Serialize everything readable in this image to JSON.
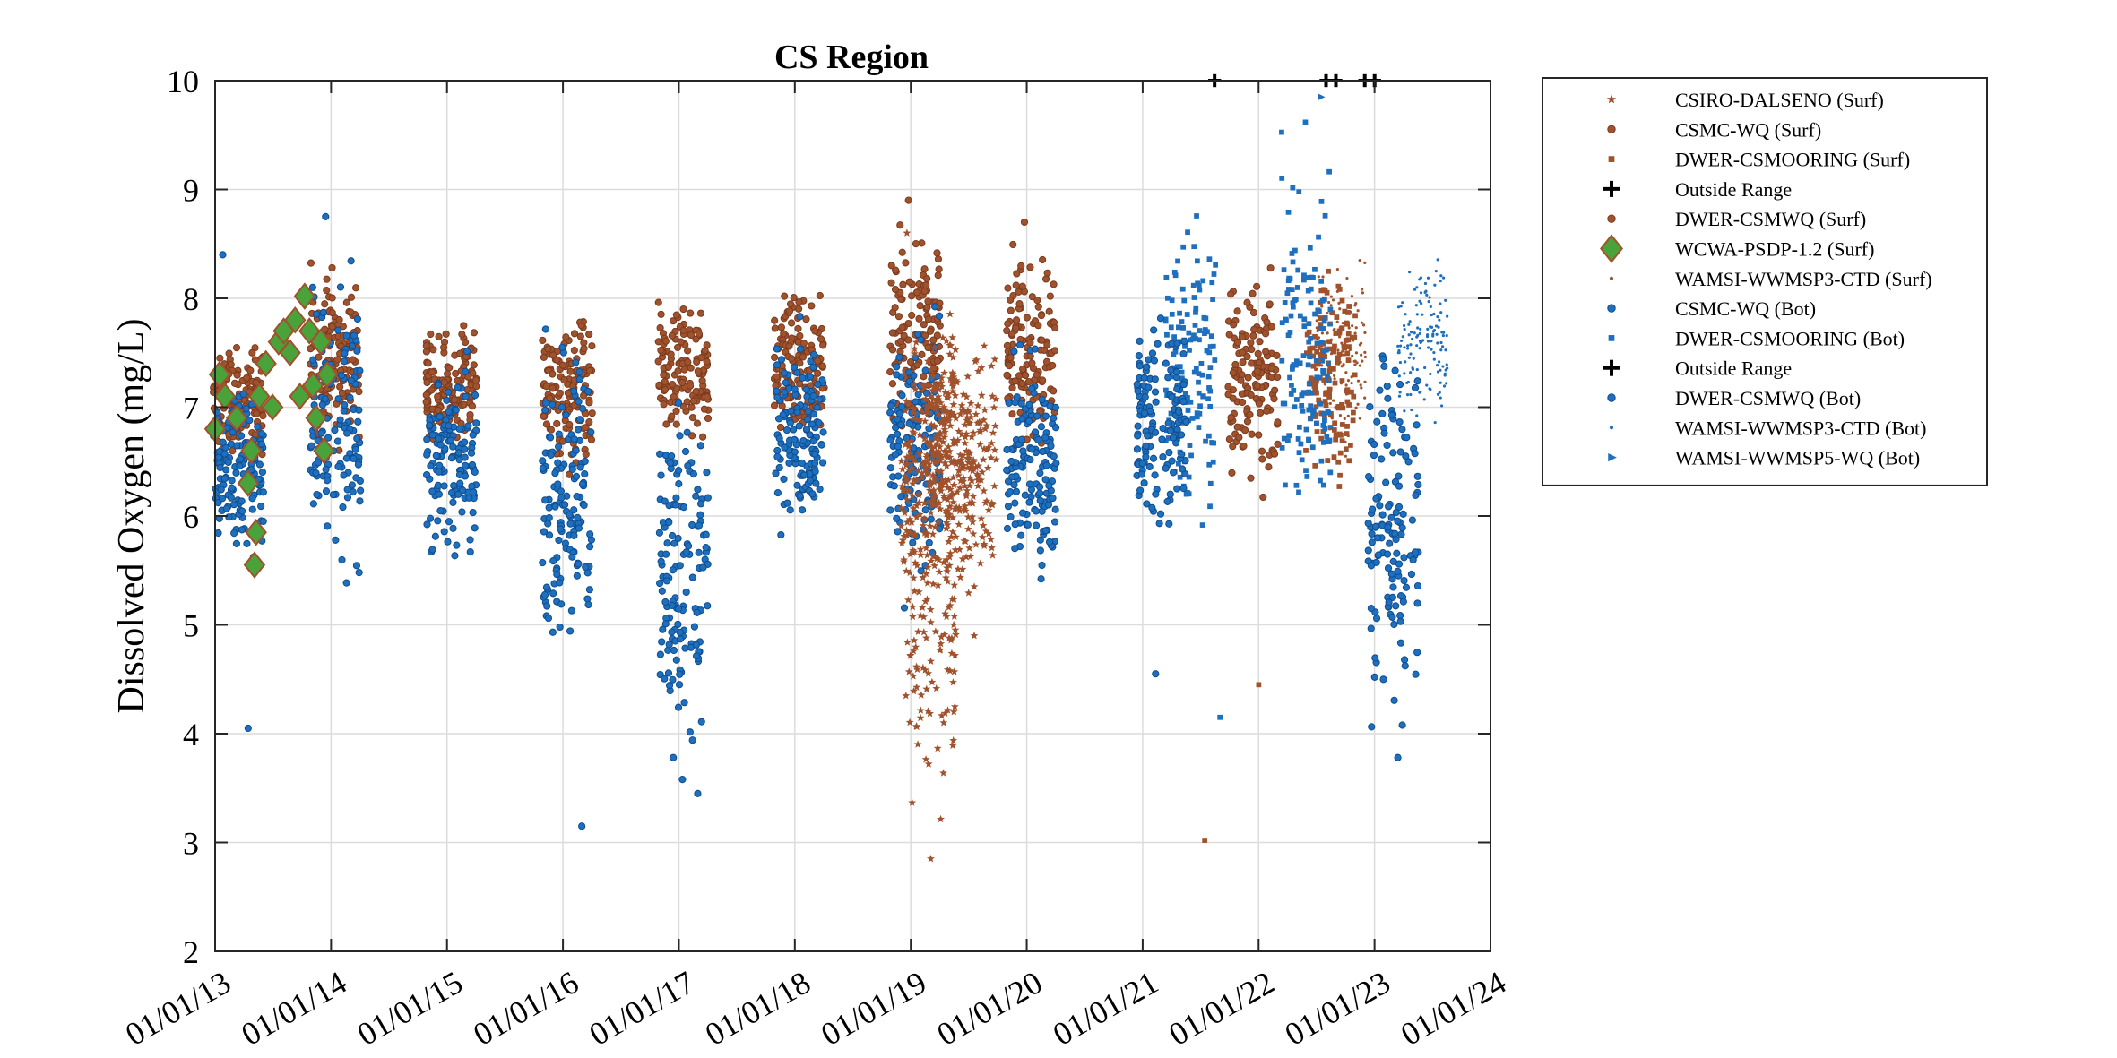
{
  "chart_data": {
    "type": "scatter",
    "title": "CS Region",
    "xlabel": "",
    "ylabel": "Dissolved Oxygen (mg/L)",
    "xlim": [
      "2013-01-01",
      "2024-01-01"
    ],
    "ylim": [
      2,
      10
    ],
    "x_tick_labels": [
      "01/01/13",
      "01/01/14",
      "01/01/15",
      "01/01/16",
      "01/01/17",
      "01/01/18",
      "01/01/19",
      "01/01/20",
      "01/01/21",
      "01/01/22",
      "01/01/23",
      "01/01/24"
    ],
    "y_tick_labels": [
      "2",
      "3",
      "4",
      "5",
      "6",
      "7",
      "8",
      "9",
      "10"
    ],
    "grid": true,
    "legend_placement": "outside-right",
    "colors": {
      "orange": "#a0522d",
      "blue": "#1f6fbf",
      "green": "#4aa33a",
      "black": "#000000"
    },
    "series": [
      {
        "name": "CSIRO-DALSENO (Surf)",
        "marker": "star",
        "color": "#a0522d",
        "clusters": [
          {
            "x": "2019-02-15",
            "y_range": [
              5.0,
              8.0
            ]
          },
          {
            "x": "2019-03-05",
            "y_range": [
              2.85,
              7.6
            ]
          },
          {
            "x": "2019-05-01",
            "y_range": [
              5.5,
              8.0
            ]
          },
          {
            "x": "2019-07-10",
            "y_range": [
              4.9,
              8.0
            ]
          }
        ],
        "points": [
          {
            "x": "2018-12-20",
            "y": 8.6
          },
          {
            "x": "2019-03-05",
            "y": 2.85
          },
          {
            "x": "2019-07-20",
            "y": 4.9
          }
        ]
      },
      {
        "name": "CSMC-WQ (Surf)",
        "marker": "circle",
        "color": "#a0522d",
        "clusters": [
          {
            "x": "2013-03-15",
            "y_range": [
              6.3,
              7.8
            ]
          },
          {
            "x": "2014-01-15",
            "y_range": [
              6.5,
              8.4
            ]
          },
          {
            "x": "2015-01-15",
            "y_range": [
              6.5,
              7.9
            ]
          },
          {
            "x": "2016-01-15",
            "y_range": [
              6.2,
              8.1
            ]
          },
          {
            "x": "2017-01-15",
            "y_range": [
              6.4,
              8.1
            ]
          },
          {
            "x": "2018-01-15",
            "y_range": [
              6.5,
              8.3
            ]
          },
          {
            "x": "2019-01-15",
            "y_range": [
              6.5,
              8.9
            ]
          },
          {
            "x": "2020-01-15",
            "y_range": [
              6.3,
              8.7
            ]
          }
        ],
        "points": [
          {
            "x": "2018-12-25",
            "y": 8.9
          },
          {
            "x": "2019-12-25",
            "y": 8.7
          }
        ]
      },
      {
        "name": "DWER-CSMOORING (Surf)",
        "marker": "square",
        "color": "#a0522d",
        "clusters": [
          {
            "x": "2022-08-15",
            "y_range": [
              5.9,
              8.8
            ]
          }
        ],
        "points": [
          {
            "x": "2021-07-15",
            "y": 3.02
          },
          {
            "x": "2022-01-01",
            "y": 4.45
          }
        ]
      },
      {
        "name": "Outside Range",
        "marker": "plus",
        "color": "#000000",
        "points": [
          {
            "x": "2021-08-15",
            "y": 10
          },
          {
            "x": "2022-08-01",
            "y": 10
          },
          {
            "x": "2022-09-01",
            "y": 10
          }
        ]
      },
      {
        "name": "DWER-CSMWQ (Surf)",
        "marker": "circle",
        "color": "#a0522d",
        "clusters": [
          {
            "x": "2021-12-15",
            "y_range": [
              6.0,
              8.5
            ]
          }
        ]
      },
      {
        "name": "WCWA-PSDP-1.2 (Surf)",
        "marker": "diamond",
        "color": "#4aa33a",
        "points": [
          {
            "x": "2013-01-01",
            "y": 6.8
          },
          {
            "x": "2013-01-15",
            "y": 7.3
          },
          {
            "x": "2013-02-01",
            "y": 7.1
          },
          {
            "x": "2013-03-10",
            "y": 6.9
          },
          {
            "x": "2013-04-15",
            "y": 6.3
          },
          {
            "x": "2013-04-25",
            "y": 6.6
          },
          {
            "x": "2013-05-05",
            "y": 5.55
          },
          {
            "x": "2013-05-10",
            "y": 5.85
          },
          {
            "x": "2013-05-20",
            "y": 7.1
          },
          {
            "x": "2013-06-10",
            "y": 7.4
          },
          {
            "x": "2013-07-01",
            "y": 7.0
          },
          {
            "x": "2013-07-20",
            "y": 7.6
          },
          {
            "x": "2013-08-05",
            "y": 7.7
          },
          {
            "x": "2013-08-25",
            "y": 7.5
          },
          {
            "x": "2013-09-10",
            "y": 7.8
          },
          {
            "x": "2013-09-25",
            "y": 7.1
          },
          {
            "x": "2013-10-10",
            "y": 8.02
          },
          {
            "x": "2013-10-25",
            "y": 7.7
          },
          {
            "x": "2013-11-05",
            "y": 7.2
          },
          {
            "x": "2013-11-15",
            "y": 6.9
          },
          {
            "x": "2013-11-30",
            "y": 7.6
          },
          {
            "x": "2013-12-10",
            "y": 6.6
          },
          {
            "x": "2013-12-20",
            "y": 7.3
          }
        ]
      },
      {
        "name": "WAMSI-WWMSP3-CTD (Surf)",
        "marker": "point",
        "color": "#a0522d",
        "clusters": [
          {
            "x": "2022-09-15",
            "y_range": [
              6.5,
              8.5
            ]
          }
        ]
      },
      {
        "name": "CSMC-WQ (Bot)",
        "marker": "circle",
        "color": "#1f6fbf",
        "clusters": [
          {
            "x": "2013-03-15",
            "y_range": [
              5.3,
              7.5
            ]
          },
          {
            "x": "2014-01-15",
            "y_range": [
              5.2,
              8.7
            ]
          },
          {
            "x": "2015-01-15",
            "y_range": [
              5.4,
              7.6
            ]
          },
          {
            "x": "2016-01-15",
            "y_range": [
              4.3,
              8.0
            ]
          },
          {
            "x": "2017-01-15",
            "y_range": [
              3.4,
              7.6
            ]
          },
          {
            "x": "2018-01-15",
            "y_range": [
              5.5,
              7.9
            ]
          },
          {
            "x": "2019-01-15",
            "y_range": [
              5.0,
              8.2
            ]
          },
          {
            "x": "2020-01-15",
            "y_range": [
              5.2,
              7.8
            ]
          }
        ],
        "points": [
          {
            "x": "2013-04-15",
            "y": 4.05
          },
          {
            "x": "2013-01-25",
            "y": 8.4
          },
          {
            "x": "2016-03-01",
            "y": 3.15
          },
          {
            "x": "2017-03-01",
            "y": 3.45
          },
          {
            "x": "2013-12-15",
            "y": 8.75
          }
        ]
      },
      {
        "name": "DWER-CSMOORING (Bot)",
        "marker": "square",
        "color": "#1f6fbf",
        "clusters": [
          {
            "x": "2021-06-01",
            "y_range": [
              5.5,
              9.2
            ]
          },
          {
            "x": "2022-06-01",
            "y_range": [
              5.3,
              9.8
            ]
          }
        ],
        "points": [
          {
            "x": "2021-09-01",
            "y": 4.15
          }
        ]
      },
      {
        "name": "Outside Range",
        "marker": "plus",
        "color": "#000000",
        "points": [
          {
            "x": "2022-12-01",
            "y": 10
          },
          {
            "x": "2023-01-01",
            "y": 10
          }
        ]
      },
      {
        "name": "DWER-CSMWQ (Bot)",
        "marker": "circle",
        "color": "#1f6fbf",
        "clusters": [
          {
            "x": "2021-03-01",
            "y_range": [
              5.5,
              8.2
            ]
          },
          {
            "x": "2023-03-01",
            "y_range": [
              3.8,
              8.0
            ]
          }
        ],
        "points": [
          {
            "x": "2021-02-10",
            "y": 4.55
          },
          {
            "x": "2023-03-15",
            "y": 3.78
          }
        ]
      },
      {
        "name": "WAMSI-WWMSP3-CTD (Bot)",
        "marker": "point",
        "color": "#1f6fbf",
        "clusters": [
          {
            "x": "2023-06-01",
            "y_range": [
              6.6,
              8.6
            ]
          }
        ]
      },
      {
        "name": "WAMSI-WWMSP5-WQ (Bot)",
        "marker": "triangle",
        "color": "#1f6fbf",
        "points": [
          {
            "x": "2022-07-15",
            "y": 9.85
          }
        ]
      }
    ]
  }
}
